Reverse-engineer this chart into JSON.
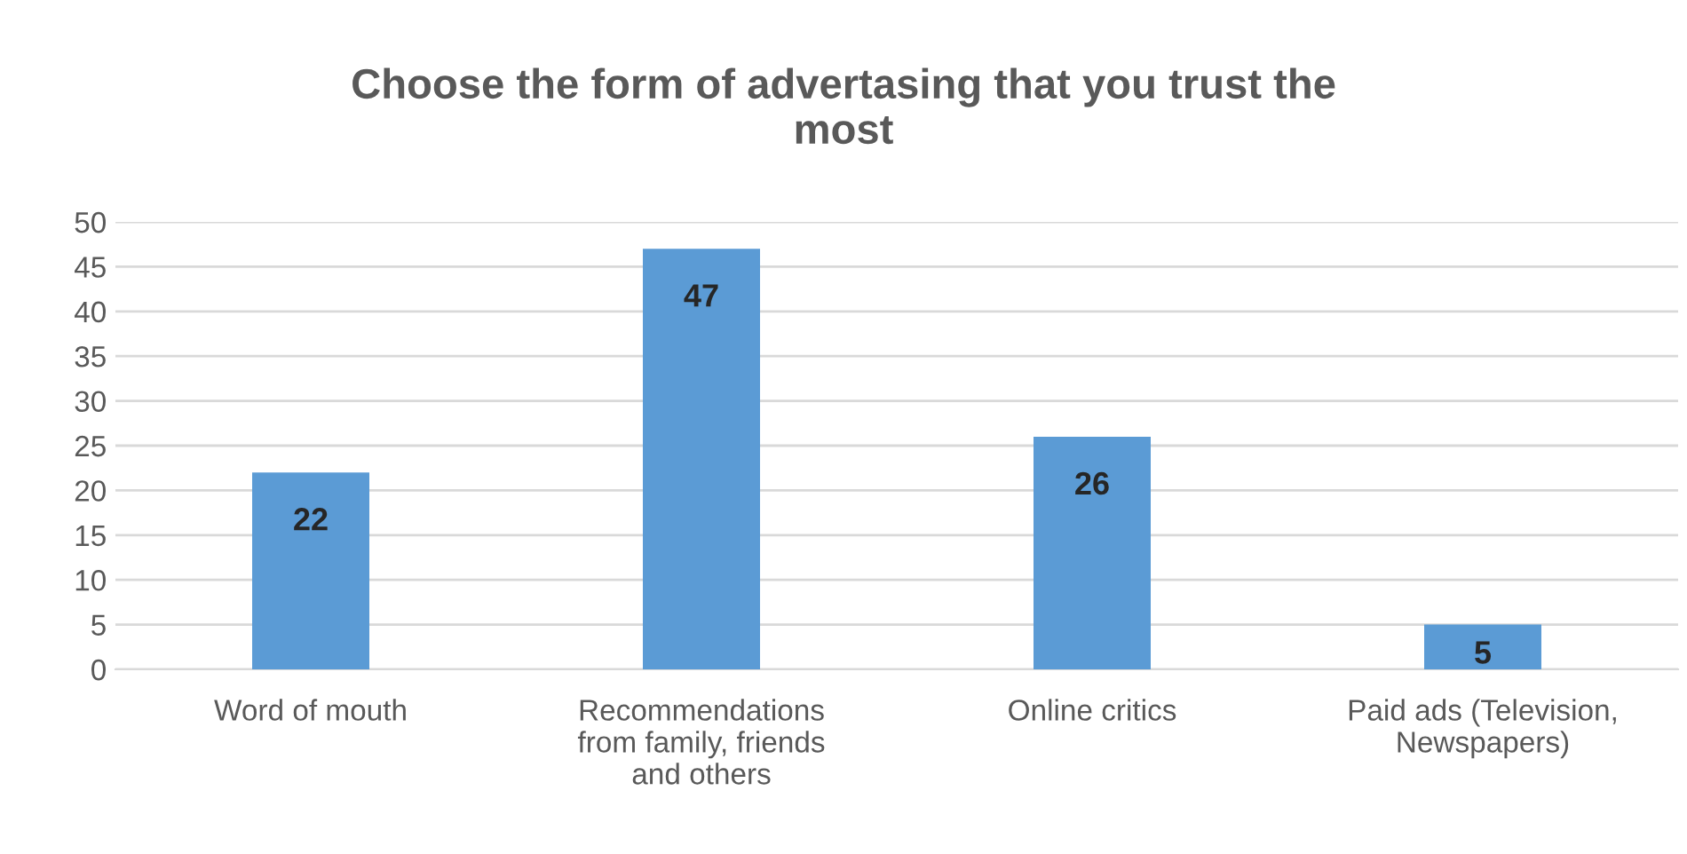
{
  "chart_data": {
    "type": "bar",
    "title": "Choose the form of advertasing that you trust the\nmost",
    "categories": [
      "Word of mouth",
      "Recommendations\nfrom family, friends\nand others",
      "Online critics",
      "Paid ads (Television,\nNewspapers)"
    ],
    "values": [
      22,
      47,
      26,
      5
    ],
    "color": "#5b9bd5",
    "ylim": [
      0,
      50
    ],
    "yticks": [
      0,
      5,
      10,
      15,
      20,
      25,
      30,
      35,
      40,
      45,
      50
    ],
    "grid": "y",
    "data_labels": true
  }
}
